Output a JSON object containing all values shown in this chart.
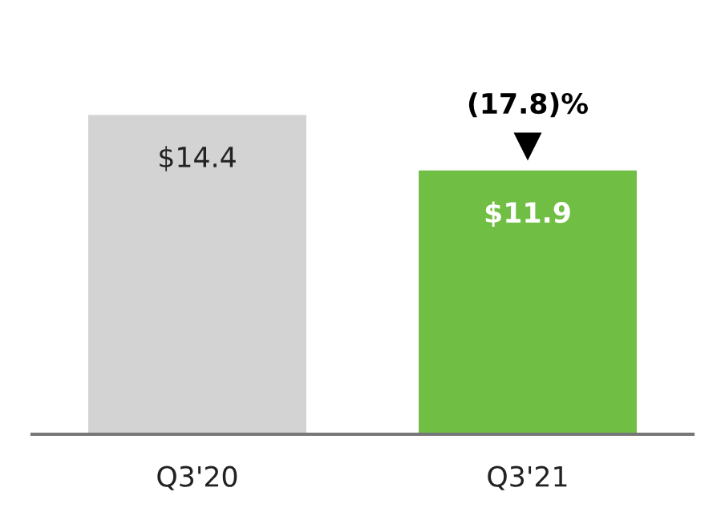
{
  "chart_data": {
    "type": "bar",
    "categories": [
      "Q3'20",
      "Q3'21"
    ],
    "values": [
      14.4,
      11.9
    ],
    "colors": [
      "#d3d3d3",
      "#70bf44"
    ],
    "value_labels": [
      "$14.4",
      "$11.9"
    ],
    "grid": false,
    "annotations": [
      {
        "text": "(17.8)%",
        "x": "Q3'21",
        "y": 11.9
      }
    ]
  }
}
